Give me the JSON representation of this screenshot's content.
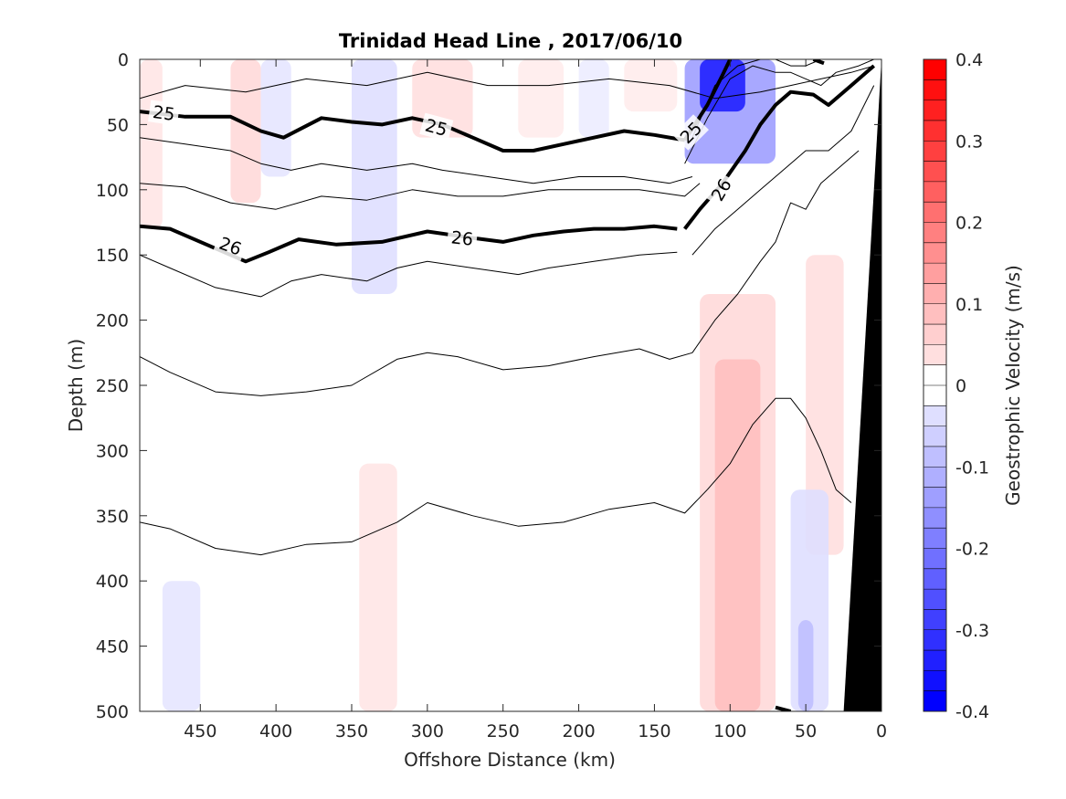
{
  "chart_data": {
    "type": "contour",
    "title": "Trinidad Head Line , 2017/06/10",
    "xlabel": "Offshore Distance (km)",
    "ylabel": "Depth (m)",
    "colorbar_label": "Geographic Velocity (m/s)",
    "colorbar_label_display": "Geostrophic Velocity (m/s)",
    "xlim": [
      490,
      0
    ],
    "ylim": [
      0,
      500
    ],
    "x_ticks": [
      450,
      400,
      350,
      300,
      250,
      200,
      150,
      100,
      50,
      0
    ],
    "y_ticks": [
      0,
      50,
      100,
      150,
      200,
      250,
      300,
      350,
      400,
      450,
      500
    ],
    "clim": [
      -0.4,
      0.4
    ],
    "colorbar_ticks": [
      0.4,
      0.3,
      0.2,
      0.1,
      0,
      -0.1,
      -0.2,
      -0.3,
      -0.4
    ],
    "colorbar_tick_labels": [
      "0.4",
      "0.3",
      "0.2",
      "0.1",
      "0",
      "-0.1",
      "-0.2",
      "-0.3",
      "-0.4"
    ],
    "colorbar_levels": 32,
    "colors": {
      "positive": "#ff0000",
      "negative": "#0000ff",
      "zero": "#ffffff",
      "bathymetry": "#000000"
    },
    "velocity_patches": [
      {
        "x": [
          490,
          475
        ],
        "y": [
          0,
          130
        ],
        "v": 0.04
      },
      {
        "x": [
          430,
          410
        ],
        "y": [
          0,
          110
        ],
        "v": 0.06
      },
      {
        "x": [
          410,
          390
        ],
        "y": [
          0,
          90
        ],
        "v": -0.04
      },
      {
        "x": [
          350,
          320
        ],
        "y": [
          0,
          180
        ],
        "v": -0.05
      },
      {
        "x": [
          310,
          270
        ],
        "y": [
          0,
          60
        ],
        "v": 0.05
      },
      {
        "x": [
          240,
          210
        ],
        "y": [
          0,
          60
        ],
        "v": 0.03
      },
      {
        "x": [
          200,
          180
        ],
        "y": [
          0,
          60
        ],
        "v": -0.03
      },
      {
        "x": [
          170,
          135
        ],
        "y": [
          0,
          40
        ],
        "v": 0.03
      },
      {
        "x": [
          130,
          70
        ],
        "y": [
          0,
          80
        ],
        "v": -0.15
      },
      {
        "x": [
          120,
          90
        ],
        "y": [
          0,
          40
        ],
        "v": -0.35
      },
      {
        "x": [
          120,
          70
        ],
        "y": [
          180,
          500
        ],
        "v": 0.06
      },
      {
        "x": [
          110,
          80
        ],
        "y": [
          230,
          500
        ],
        "v": 0.1
      },
      {
        "x": [
          50,
          25
        ],
        "y": [
          150,
          380
        ],
        "v": 0.05
      },
      {
        "x": [
          60,
          35
        ],
        "y": [
          330,
          500
        ],
        "v": -0.05
      },
      {
        "x": [
          55,
          45
        ],
        "y": [
          430,
          500
        ],
        "v": -0.1
      },
      {
        "x": [
          345,
          320
        ],
        "y": [
          310,
          500
        ],
        "v": 0.04
      },
      {
        "x": [
          475,
          450
        ],
        "y": [
          400,
          500
        ],
        "v": -0.04
      }
    ],
    "bathymetry": {
      "x": [
        25,
        0,
        0,
        25
      ],
      "y": [
        500,
        0,
        500,
        500
      ]
    },
    "isopycnals": [
      {
        "label": "",
        "bold": false,
        "x": [
          490,
          460,
          420,
          380,
          340,
          300,
          260,
          220,
          180,
          140,
          110,
          80,
          60,
          40,
          20,
          5
        ],
        "y": [
          30,
          20,
          25,
          15,
          20,
          10,
          20,
          20,
          15,
          20,
          30,
          25,
          20,
          15,
          10,
          5
        ]
      },
      {
        "label": "25",
        "bold": true,
        "x": [
          490,
          460,
          430,
          410,
          395,
          370,
          350,
          330,
          310,
          290,
          270,
          250,
          230,
          210,
          190,
          170,
          150,
          130
        ],
        "y": [
          40,
          44,
          44,
          55,
          60,
          45,
          48,
          50,
          45,
          50,
          60,
          70,
          70,
          65,
          60,
          55,
          58,
          62
        ]
      },
      {
        "label": "",
        "bold": false,
        "x": [
          490,
          460,
          430,
          410,
          390,
          370,
          340,
          310,
          290,
          260,
          230,
          200,
          170,
          140,
          125
        ],
        "y": [
          60,
          65,
          70,
          80,
          85,
          80,
          85,
          80,
          85,
          90,
          95,
          90,
          90,
          95,
          90
        ]
      },
      {
        "label": "",
        "bold": false,
        "x": [
          490,
          460,
          430,
          400,
          370,
          340,
          310,
          280,
          250,
          220,
          190,
          160,
          130,
          120
        ],
        "y": [
          95,
          98,
          110,
          115,
          105,
          108,
          100,
          105,
          105,
          100,
          100,
          100,
          105,
          95
        ]
      },
      {
        "label": "26",
        "bold": true,
        "x": [
          490,
          470,
          440,
          420,
          405,
          385,
          360,
          330,
          300,
          270,
          250,
          230,
          210,
          190,
          170,
          150,
          135
        ],
        "y": [
          128,
          130,
          145,
          155,
          148,
          138,
          142,
          140,
          132,
          137,
          140,
          135,
          132,
          130,
          130,
          128,
          130
        ]
      },
      {
        "label": "",
        "bold": false,
        "x": [
          490,
          470,
          440,
          410,
          390,
          370,
          340,
          320,
          300,
          270,
          240,
          220,
          190,
          160,
          135
        ],
        "y": [
          150,
          160,
          175,
          182,
          170,
          165,
          170,
          160,
          155,
          160,
          165,
          160,
          155,
          150,
          148
        ]
      },
      {
        "label": "",
        "bold": false,
        "x": [
          490,
          470,
          440,
          410,
          380,
          350,
          320,
          300,
          280,
          250,
          220,
          190,
          160,
          140,
          125
        ],
        "y": [
          228,
          240,
          255,
          258,
          255,
          250,
          230,
          225,
          228,
          238,
          235,
          228,
          222,
          230,
          225
        ]
      },
      {
        "label": "",
        "bold": false,
        "x": [
          490,
          470,
          440,
          410,
          380,
          350,
          320,
          300,
          270,
          240,
          210,
          180,
          150,
          130,
          115
        ],
        "y": [
          355,
          360,
          375,
          380,
          372,
          370,
          355,
          340,
          350,
          358,
          355,
          345,
          340,
          348,
          330
        ]
      },
      {
        "label": "",
        "bold": false,
        "x": [
          125,
          110,
          95,
          80,
          70,
          60,
          50,
          40,
          30,
          20,
          10,
          5
        ],
        "y": [
          60,
          20,
          5,
          0,
          0,
          5,
          5,
          0,
          0,
          0,
          0,
          0
        ]
      },
      {
        "label": "",
        "bold": false,
        "x": [
          130,
          115,
          100,
          85,
          70,
          60,
          50,
          40,
          30,
          15,
          5
        ],
        "y": [
          80,
          45,
          15,
          5,
          10,
          10,
          15,
          20,
          10,
          5,
          0
        ]
      },
      {
        "label": "25",
        "bold": true,
        "x": [
          130,
          115,
          105,
          100
        ],
        "y": [
          62,
          35,
          12,
          0
        ]
      },
      {
        "label": "26",
        "bold": true,
        "x": [
          130,
          120,
          105,
          90,
          80,
          70,
          60,
          45,
          35,
          20,
          10,
          5
        ],
        "y": [
          130,
          115,
          95,
          70,
          50,
          35,
          25,
          27,
          35,
          20,
          10,
          5
        ]
      },
      {
        "label": "",
        "bold": false,
        "x": [
          125,
          110,
          95,
          80,
          65,
          50,
          35,
          20,
          5
        ],
        "y": [
          150,
          130,
          115,
          100,
          85,
          70,
          70,
          55,
          20
        ]
      },
      {
        "label": "",
        "bold": false,
        "x": [
          125,
          110,
          95,
          80,
          70,
          60,
          50,
          40,
          30,
          15
        ],
        "y": [
          225,
          200,
          180,
          155,
          140,
          110,
          115,
          95,
          85,
          70
        ]
      },
      {
        "label": "",
        "bold": false,
        "x": [
          115,
          100,
          85,
          70,
          60,
          50,
          40,
          30,
          20
        ],
        "y": [
          330,
          310,
          280,
          260,
          260,
          275,
          300,
          330,
          340
        ]
      },
      {
        "label": "",
        "bold": true,
        "x": [
          45,
          38
        ],
        "y": [
          0,
          3
        ]
      },
      {
        "label": "",
        "bold": true,
        "x": [
          70,
          60
        ],
        "y": [
          497,
          500
        ]
      }
    ],
    "contour_labels": [
      {
        "text": "25",
        "x": 474,
        "y": 41,
        "angle": 8
      },
      {
        "text": "25",
        "x": 294,
        "y": 52,
        "angle": 15
      },
      {
        "text": "25",
        "x": 126,
        "y": 56,
        "angle": -45
      },
      {
        "text": "26",
        "x": 430,
        "y": 143,
        "angle": 20
      },
      {
        "text": "26",
        "x": 277,
        "y": 137,
        "angle": 6
      },
      {
        "text": "26",
        "x": 106,
        "y": 100,
        "angle": -60
      }
    ]
  }
}
